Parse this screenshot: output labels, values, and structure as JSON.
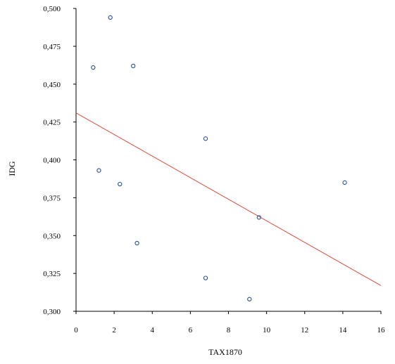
{
  "chart_data": {
    "type": "scatter",
    "xlabel": "TAX1870",
    "ylabel": "IDG",
    "xlim": [
      0,
      16
    ],
    "ylim": [
      0.3,
      0.5
    ],
    "x_ticks": [
      0,
      2,
      4,
      6,
      8,
      10,
      12,
      14,
      16
    ],
    "x_tick_labels": [
      "0",
      "2",
      "4",
      "6",
      "8",
      "10",
      "12",
      "14",
      "16"
    ],
    "y_ticks": [
      0.3,
      0.325,
      0.35,
      0.375,
      0.4,
      0.425,
      0.45,
      0.475,
      0.5
    ],
    "y_tick_labels": [
      "0,300",
      "0,325",
      "0,350",
      "0,375",
      "0,400",
      "0,425",
      "0,450",
      "0,475",
      "0,500"
    ],
    "grid": false,
    "points": [
      {
        "x": 0.9,
        "y": 0.461
      },
      {
        "x": 1.2,
        "y": 0.393
      },
      {
        "x": 1.8,
        "y": 0.494
      },
      {
        "x": 2.3,
        "y": 0.384
      },
      {
        "x": 3.0,
        "y": 0.462
      },
      {
        "x": 3.2,
        "y": 0.345
      },
      {
        "x": 6.8,
        "y": 0.414
      },
      {
        "x": 6.8,
        "y": 0.322
      },
      {
        "x": 9.1,
        "y": 0.308
      },
      {
        "x": 9.6,
        "y": 0.362
      },
      {
        "x": 14.1,
        "y": 0.385
      }
    ],
    "trendline": {
      "x_start": 0,
      "y_start": 0.431,
      "x_end": 16,
      "y_end": 0.317
    },
    "colors": {
      "marker": "#1f4e9c",
      "trendline": "#e0483a",
      "axis": "#000000"
    }
  }
}
